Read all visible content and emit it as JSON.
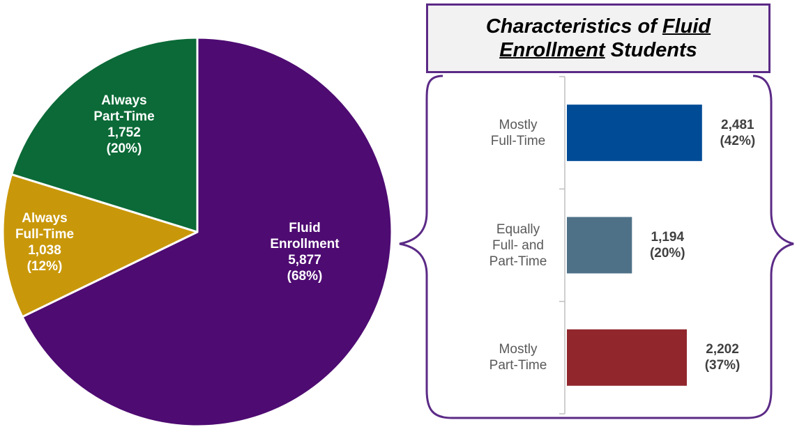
{
  "chart_data": [
    {
      "type": "pie",
      "slices": [
        {
          "label": "Fluid Enrollment",
          "label_lines": [
            "Fluid",
            "Enrollment"
          ],
          "value": 5877,
          "value_text": "5,877",
          "percent_text": "(68%)",
          "color": "#4e0b72"
        },
        {
          "label": "Always Full-Time",
          "label_lines": [
            "Always",
            "Full-Time"
          ],
          "value": 1038,
          "value_text": "1,038",
          "percent_text": "(12%)",
          "color": "#c9980a"
        },
        {
          "label": "Always Part-Time",
          "label_lines": [
            "Always",
            "Part-Time"
          ],
          "value": 1752,
          "value_text": "1,752",
          "percent_text": "(20%)",
          "color": "#0b6a37"
        }
      ]
    },
    {
      "type": "bar",
      "orientation": "horizontal",
      "title_parts": [
        {
          "text": "Characteristics of ",
          "underline": false
        },
        {
          "text": "Fluid",
          "underline": true
        },
        {
          "text": "Enrollment",
          "underline": true,
          "newline": true
        },
        {
          "text": " Students",
          "underline": false
        }
      ],
      "categories": [
        {
          "lines": [
            "Mostly",
            "Full-Time"
          ],
          "value": 2481,
          "value_text": "2,481",
          "percent_text": "(42%)",
          "color": "#004b96"
        },
        {
          "lines": [
            "Equally",
            "Full- and",
            "Part-Time"
          ],
          "value": 1194,
          "value_text": "1,194",
          "percent_text": "(20%)",
          "color": "#4f7188"
        },
        {
          "lines": [
            "Mostly",
            "Part-Time"
          ],
          "value": 2202,
          "value_text": "2,202",
          "percent_text": "(37%)",
          "color": "#91272d"
        }
      ]
    }
  ],
  "colors": {
    "accent_border": "#5b2a86",
    "title_bg": "#f2f2f2",
    "axis": "#bfbfbf"
  }
}
